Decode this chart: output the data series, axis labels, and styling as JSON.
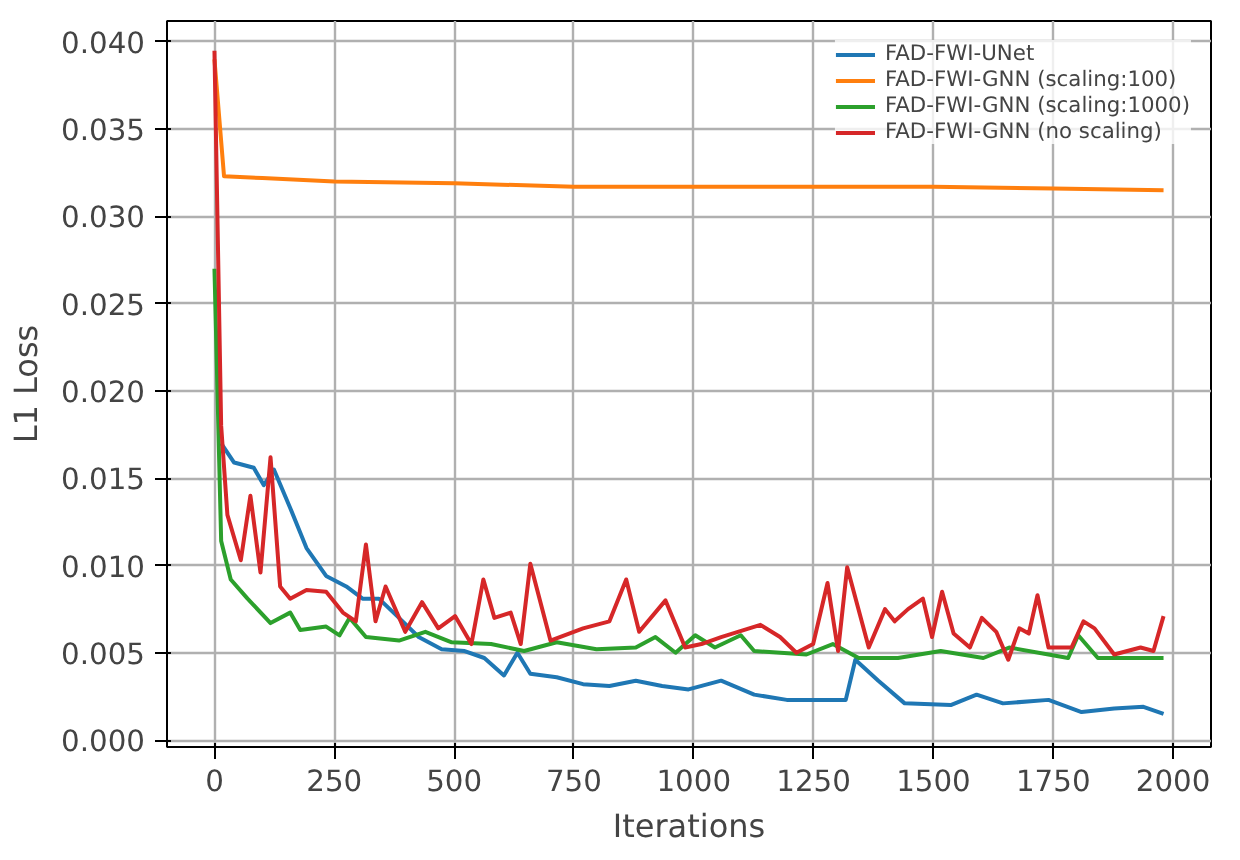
{
  "chart_data": {
    "type": "line",
    "xlabel": "Iterations",
    "ylabel": "L1 Loss",
    "xlim": [
      -99,
      2079
    ],
    "ylim": [
      -0.0004,
      0.0412
    ],
    "xticks": [
      0,
      250,
      500,
      750,
      1000,
      1250,
      1500,
      1750,
      2000
    ],
    "yticks": [
      {
        "value": 0,
        "label": "0.000"
      },
      {
        "value": 0.005,
        "label": "0.005"
      },
      {
        "value": 0.01,
        "label": "0.010"
      },
      {
        "value": 0.015,
        "label": "0.015"
      },
      {
        "value": 0.02,
        "label": "0.020"
      },
      {
        "value": 0.025,
        "label": "0.025"
      },
      {
        "value": 0.03,
        "label": "0.030"
      },
      {
        "value": 0.035,
        "label": "0.035"
      },
      {
        "value": 0.04,
        "label": "0.040"
      }
    ],
    "grid": true,
    "legend": "top right",
    "series": [
      {
        "name": "FAD-FWI-UNet",
        "color": "#1f77b4",
        "x": [
          14,
          41,
          82,
          103,
          124,
          158,
          192,
          233,
          275,
          309,
          343,
          385,
          426,
          474,
          522,
          563,
          604,
          632,
          659,
          714,
          769,
          824,
          879,
          934,
          989,
          1057,
          1126,
          1194,
          1262,
          1317,
          1337,
          1385,
          1440,
          1536,
          1590,
          1645,
          1740,
          1809,
          1877,
          1938,
          1980
        ],
        "values": [
          0.017,
          0.0159,
          0.0156,
          0.0146,
          0.0155,
          0.0133,
          0.011,
          0.0094,
          0.0088,
          0.0081,
          0.0081,
          0.007,
          0.0059,
          0.0052,
          0.0051,
          0.0047,
          0.0037,
          0.005,
          0.0038,
          0.0036,
          0.0032,
          0.0031,
          0.0034,
          0.0031,
          0.0029,
          0.0034,
          0.0026,
          0.0023,
          0.0023,
          0.0023,
          0.0046,
          0.0034,
          0.0021,
          0.002,
          0.0026,
          0.0021,
          0.0023,
          0.0016,
          0.0018,
          0.0019,
          0.0015
        ]
      },
      {
        "name": "FAD-FWI-GNN (scaling:100)",
        "color": "#ff7f0e",
        "x": [
          0,
          20,
          100,
          250,
          500,
          750,
          1000,
          1500,
          1750,
          1980
        ],
        "values": [
          0.039,
          0.0323,
          0.0322,
          0.032,
          0.0319,
          0.0317,
          0.0317,
          0.0317,
          0.0316,
          0.0315
        ]
      },
      {
        "name": "FAD-FWI-GNN (scaling:1000)",
        "color": "#2ca02c",
        "x": [
          0,
          14,
          34,
          69,
          117,
          158,
          179,
          233,
          261,
          282,
          316,
          385,
          440,
          495,
          577,
          646,
          714,
          797,
          879,
          920,
          962,
          1003,
          1044,
          1098,
          1126,
          1235,
          1290,
          1344,
          1426,
          1515,
          1604,
          1658,
          1781,
          1802,
          1843,
          1980
        ],
        "values": [
          0.027,
          0.0114,
          0.0092,
          0.0081,
          0.0067,
          0.0073,
          0.0063,
          0.0065,
          0.006,
          0.007,
          0.0059,
          0.0057,
          0.0062,
          0.0056,
          0.0055,
          0.0051,
          0.0056,
          0.0052,
          0.0053,
          0.0059,
          0.005,
          0.006,
          0.0053,
          0.006,
          0.0051,
          0.0049,
          0.0055,
          0.0047,
          0.0047,
          0.0051,
          0.0047,
          0.0053,
          0.0047,
          0.006,
          0.0047,
          0.0047
        ]
      },
      {
        "name": "FAD-FWI-GNN (no scaling)",
        "color": "#d62728",
        "x": [
          0,
          14,
          27,
          55,
          75,
          96,
          117,
          137,
          158,
          192,
          233,
          268,
          295,
          316,
          336,
          357,
          398,
          433,
          467,
          502,
          536,
          561,
          584,
          618,
          639,
          659,
          701,
          769,
          824,
          859,
          886,
          941,
          982,
          1016,
          1057,
          1139,
          1180,
          1214,
          1249,
          1279,
          1301,
          1320,
          1365,
          1399,
          1419,
          1447,
          1478,
          1497,
          1518,
          1542,
          1576,
          1601,
          1631,
          1656,
          1679,
          1699,
          1717,
          1740,
          1788,
          1813,
          1836,
          1877,
          1932,
          1959,
          1980
        ],
        "values": [
          0.0395,
          0.018,
          0.0129,
          0.0103,
          0.014,
          0.0096,
          0.0162,
          0.0088,
          0.0081,
          0.0086,
          0.0085,
          0.0073,
          0.0068,
          0.0112,
          0.0068,
          0.0088,
          0.0062,
          0.0079,
          0.0064,
          0.0071,
          0.0055,
          0.0092,
          0.007,
          0.0073,
          0.0055,
          0.0101,
          0.0057,
          0.0064,
          0.0068,
          0.0092,
          0.0062,
          0.008,
          0.0053,
          0.0055,
          0.0059,
          0.0066,
          0.0059,
          0.005,
          0.0055,
          0.009,
          0.0051,
          0.0099,
          0.0053,
          0.0075,
          0.0068,
          0.0075,
          0.0081,
          0.0059,
          0.0085,
          0.0061,
          0.0053,
          0.007,
          0.0062,
          0.0046,
          0.0064,
          0.0061,
          0.0083,
          0.0053,
          0.0053,
          0.0068,
          0.0064,
          0.0049,
          0.0053,
          0.0051,
          0.0071
        ]
      }
    ]
  }
}
